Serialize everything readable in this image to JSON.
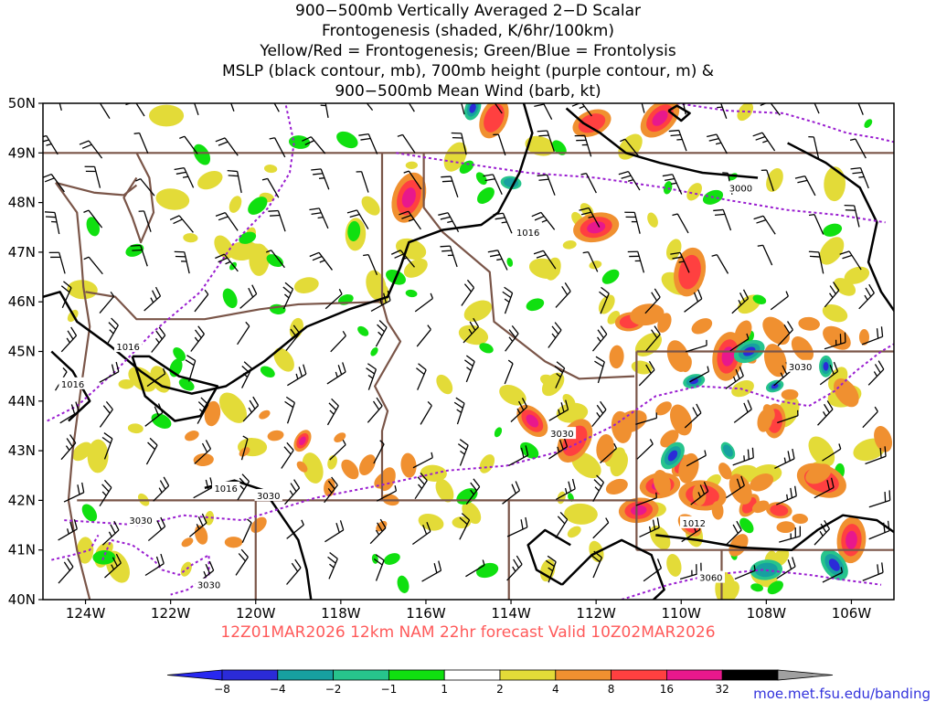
{
  "title": {
    "lines": [
      "900−500mb Vertically Averaged 2−D Scalar",
      "Frontogenesis (shaded, K/6hr/100km)",
      "Yellow/Red = Frontogenesis;  Green/Blue = Frontolysis",
      "MSLP (black contour, mb), 700mb height (purple contour, m) &",
      "900−500mb Mean Wind (barb, kt)"
    ]
  },
  "map": {
    "lat_labels": [
      "50N",
      "49N",
      "48N",
      "47N",
      "46N",
      "45N",
      "44N",
      "43N",
      "42N",
      "41N",
      "40N"
    ],
    "lon_labels": [
      "124W",
      "122W",
      "120W",
      "118W",
      "116W",
      "114W",
      "112W",
      "110W",
      "108W",
      "106W"
    ],
    "lat_range": [
      40,
      50
    ],
    "lon_range": [
      -125,
      -105
    ],
    "mslp_labels": [
      "1016",
      "1016",
      "1016",
      "1016",
      "1012"
    ],
    "height_labels": [
      "3000",
      "3030",
      "3030",
      "3030",
      "3030",
      "3030",
      "3060"
    ]
  },
  "footer": {
    "run_text": "12Z01MAR2026  12km NAM 22hr forecast Valid  10Z02MAR2026",
    "run_color": "#ff5a5a",
    "source_url": "moe.met.fsu.edu/banding",
    "url_color": "#3232dc"
  },
  "colorbar": {
    "labels": [
      "−8",
      "−4",
      "−2",
      "−1",
      "1",
      "2",
      "4",
      "8",
      "16",
      "32"
    ],
    "colors": [
      "#2b2bd8",
      "#17a0a0",
      "#27c48c",
      "#10e010",
      "#ffffff",
      "#e3db38",
      "#f09030",
      "#ff4040",
      "#e8188c",
      "#000000"
    ],
    "end_low": "#2828f0",
    "end_high": "#a0a0a0"
  },
  "colors": {
    "state_border": "#7a5548",
    "mslp": "#000000",
    "height": "#9a1ed0",
    "barb": "#000000"
  }
}
